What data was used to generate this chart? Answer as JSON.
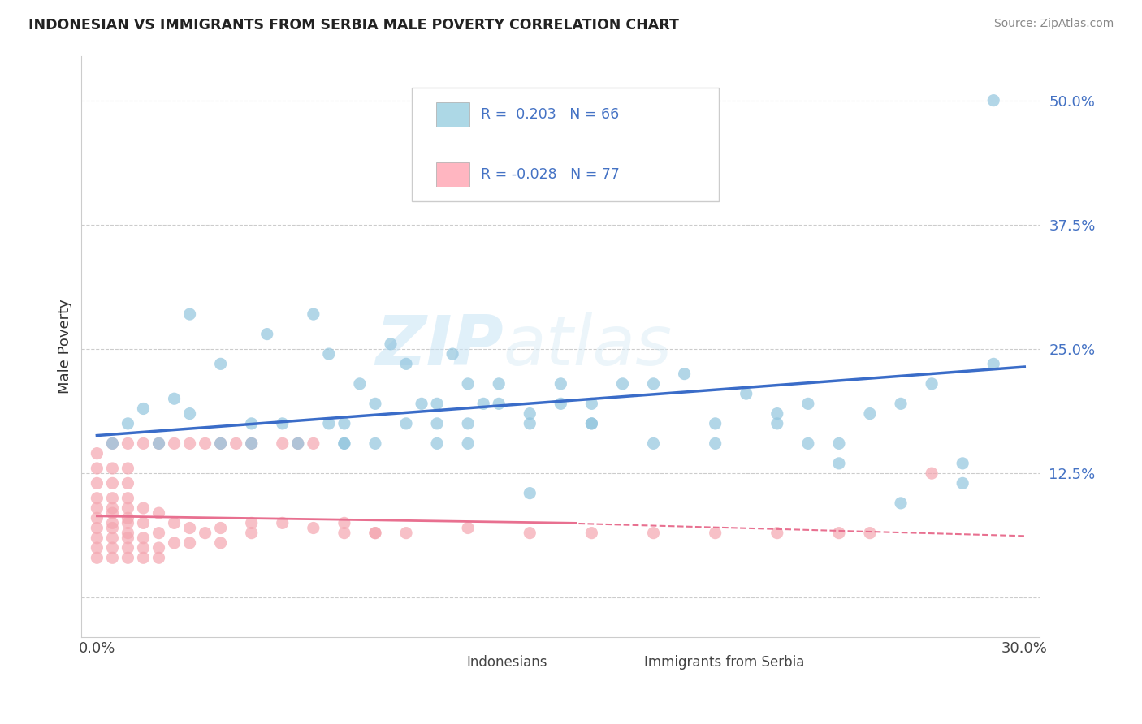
{
  "title": "INDONESIAN VS IMMIGRANTS FROM SERBIA MALE POVERTY CORRELATION CHART",
  "source": "Source: ZipAtlas.com",
  "ylabel": "Male Poverty",
  "yticks": [
    0.0,
    0.125,
    0.25,
    0.375,
    0.5
  ],
  "ytick_labels": [
    "",
    "12.5%",
    "25.0%",
    "37.5%",
    "50.0%"
  ],
  "xmin": 0.0,
  "xmax": 0.3,
  "ymin": -0.04,
  "ymax": 0.545,
  "color_indonesian": "#92C5DE",
  "color_serbia": "#F4A6B0",
  "trendline_indonesian_color": "#3A6CC8",
  "trendline_serbia_color": "#E87090",
  "legend_color_indonesian": "#ADD8E6",
  "legend_color_serbia": "#FFB6C1",
  "watermark_zip": "ZIP",
  "watermark_atlas": "atlas",
  "indonesian_x": [
    0.005,
    0.01,
    0.015,
    0.02,
    0.025,
    0.03,
    0.03,
    0.04,
    0.04,
    0.05,
    0.05,
    0.055,
    0.06,
    0.065,
    0.07,
    0.075,
    0.075,
    0.08,
    0.08,
    0.085,
    0.09,
    0.095,
    0.1,
    0.105,
    0.11,
    0.11,
    0.115,
    0.12,
    0.12,
    0.125,
    0.13,
    0.13,
    0.14,
    0.14,
    0.15,
    0.15,
    0.16,
    0.16,
    0.17,
    0.18,
    0.19,
    0.2,
    0.21,
    0.22,
    0.23,
    0.23,
    0.24,
    0.25,
    0.26,
    0.27,
    0.08,
    0.09,
    0.1,
    0.11,
    0.12,
    0.14,
    0.16,
    0.18,
    0.2,
    0.22,
    0.24,
    0.26,
    0.28,
    0.28,
    0.29,
    0.29
  ],
  "indonesian_y": [
    0.155,
    0.175,
    0.19,
    0.155,
    0.2,
    0.285,
    0.185,
    0.155,
    0.235,
    0.175,
    0.155,
    0.265,
    0.175,
    0.155,
    0.285,
    0.175,
    0.245,
    0.175,
    0.155,
    0.215,
    0.195,
    0.255,
    0.175,
    0.195,
    0.175,
    0.195,
    0.245,
    0.215,
    0.175,
    0.195,
    0.195,
    0.215,
    0.185,
    0.175,
    0.195,
    0.215,
    0.175,
    0.195,
    0.215,
    0.215,
    0.225,
    0.175,
    0.205,
    0.185,
    0.195,
    0.155,
    0.155,
    0.185,
    0.195,
    0.215,
    0.155,
    0.155,
    0.235,
    0.155,
    0.155,
    0.105,
    0.175,
    0.155,
    0.155,
    0.175,
    0.135,
    0.095,
    0.135,
    0.115,
    0.235,
    0.5
  ],
  "serbia_x": [
    0.0,
    0.0,
    0.0,
    0.0,
    0.0,
    0.0,
    0.0,
    0.0,
    0.0,
    0.0,
    0.005,
    0.005,
    0.005,
    0.005,
    0.005,
    0.005,
    0.005,
    0.005,
    0.005,
    0.005,
    0.01,
    0.01,
    0.01,
    0.01,
    0.01,
    0.01,
    0.01,
    0.01,
    0.01,
    0.01,
    0.015,
    0.015,
    0.015,
    0.015,
    0.015,
    0.02,
    0.02,
    0.02,
    0.02,
    0.025,
    0.025,
    0.03,
    0.03,
    0.035,
    0.04,
    0.04,
    0.05,
    0.05,
    0.06,
    0.07,
    0.08,
    0.09,
    0.1,
    0.12,
    0.14,
    0.16,
    0.18,
    0.2,
    0.22,
    0.24,
    0.005,
    0.01,
    0.015,
    0.02,
    0.025,
    0.03,
    0.035,
    0.04,
    0.045,
    0.05,
    0.06,
    0.065,
    0.07,
    0.08,
    0.09,
    0.25,
    0.27
  ],
  "serbia_y": [
    0.04,
    0.05,
    0.06,
    0.07,
    0.08,
    0.09,
    0.1,
    0.115,
    0.13,
    0.145,
    0.04,
    0.05,
    0.06,
    0.07,
    0.075,
    0.085,
    0.09,
    0.1,
    0.115,
    0.13,
    0.04,
    0.05,
    0.06,
    0.065,
    0.075,
    0.08,
    0.09,
    0.1,
    0.115,
    0.13,
    0.04,
    0.05,
    0.06,
    0.075,
    0.09,
    0.04,
    0.05,
    0.065,
    0.085,
    0.055,
    0.075,
    0.055,
    0.07,
    0.065,
    0.055,
    0.07,
    0.065,
    0.075,
    0.075,
    0.07,
    0.065,
    0.065,
    0.065,
    0.07,
    0.065,
    0.065,
    0.065,
    0.065,
    0.065,
    0.065,
    0.155,
    0.155,
    0.155,
    0.155,
    0.155,
    0.155,
    0.155,
    0.155,
    0.155,
    0.155,
    0.155,
    0.155,
    0.155,
    0.075,
    0.065,
    0.065,
    0.125
  ]
}
